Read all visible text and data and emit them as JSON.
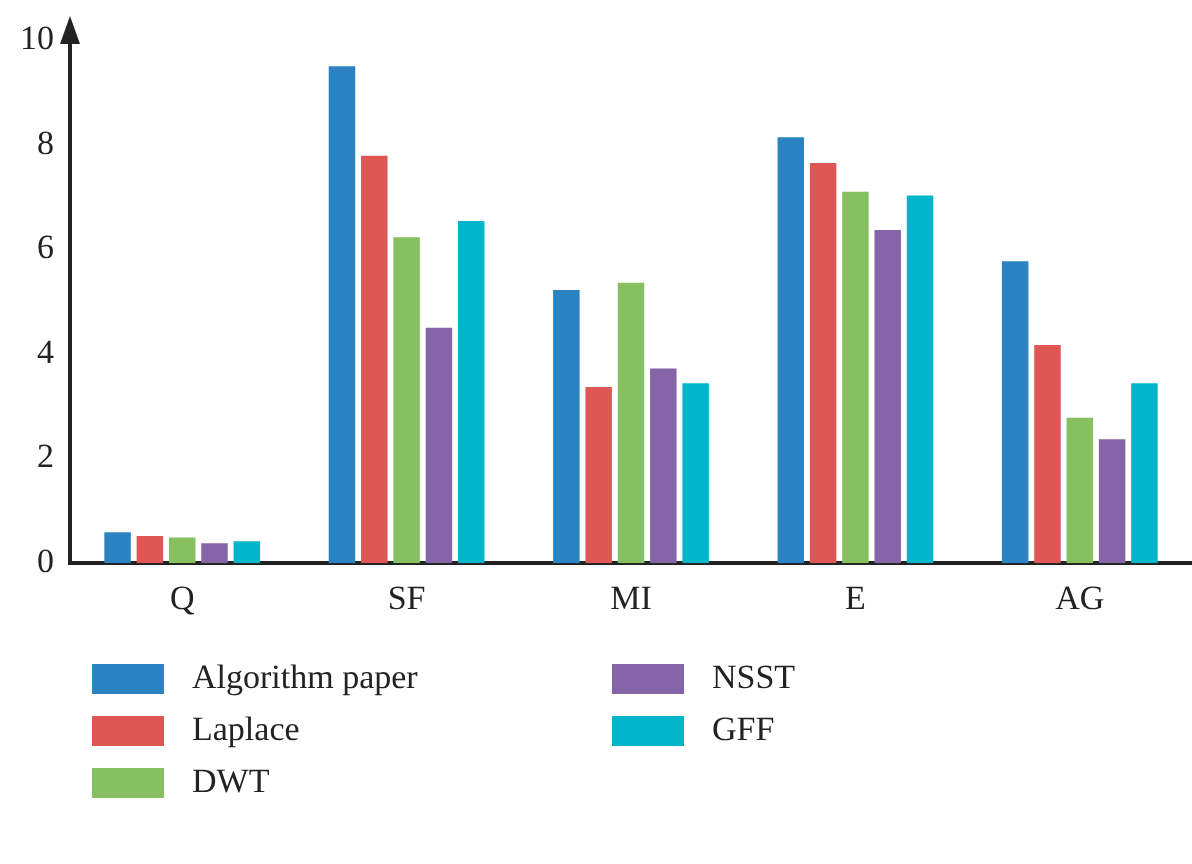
{
  "chart_data": {
    "type": "bar",
    "categories": [
      "Q",
      "SF",
      "MI",
      "E",
      "AG"
    ],
    "series": [
      {
        "name": "Algorithm paper",
        "color": "#2b83c2",
        "values": [
          0.59,
          9.5,
          5.22,
          8.14,
          5.77
        ]
      },
      {
        "name": "Laplace",
        "color": "#df5755",
        "values": [
          0.52,
          7.79,
          3.37,
          7.65,
          4.17
        ]
      },
      {
        "name": "DWT",
        "color": "#86c060",
        "values": [
          0.49,
          6.23,
          5.36,
          7.1,
          2.78
        ]
      },
      {
        "name": "NSST",
        "color": "#8466a8",
        "values": [
          0.38,
          4.5,
          3.72,
          6.37,
          2.37
        ]
      },
      {
        "name": "GFF",
        "color": "#02b5ca",
        "values": [
          0.42,
          6.54,
          3.44,
          7.03,
          3.44
        ]
      }
    ],
    "ylim": [
      0,
      10
    ],
    "yticks": [
      0,
      2,
      4,
      6,
      8,
      10
    ],
    "grid": false,
    "legend": "bottom"
  }
}
